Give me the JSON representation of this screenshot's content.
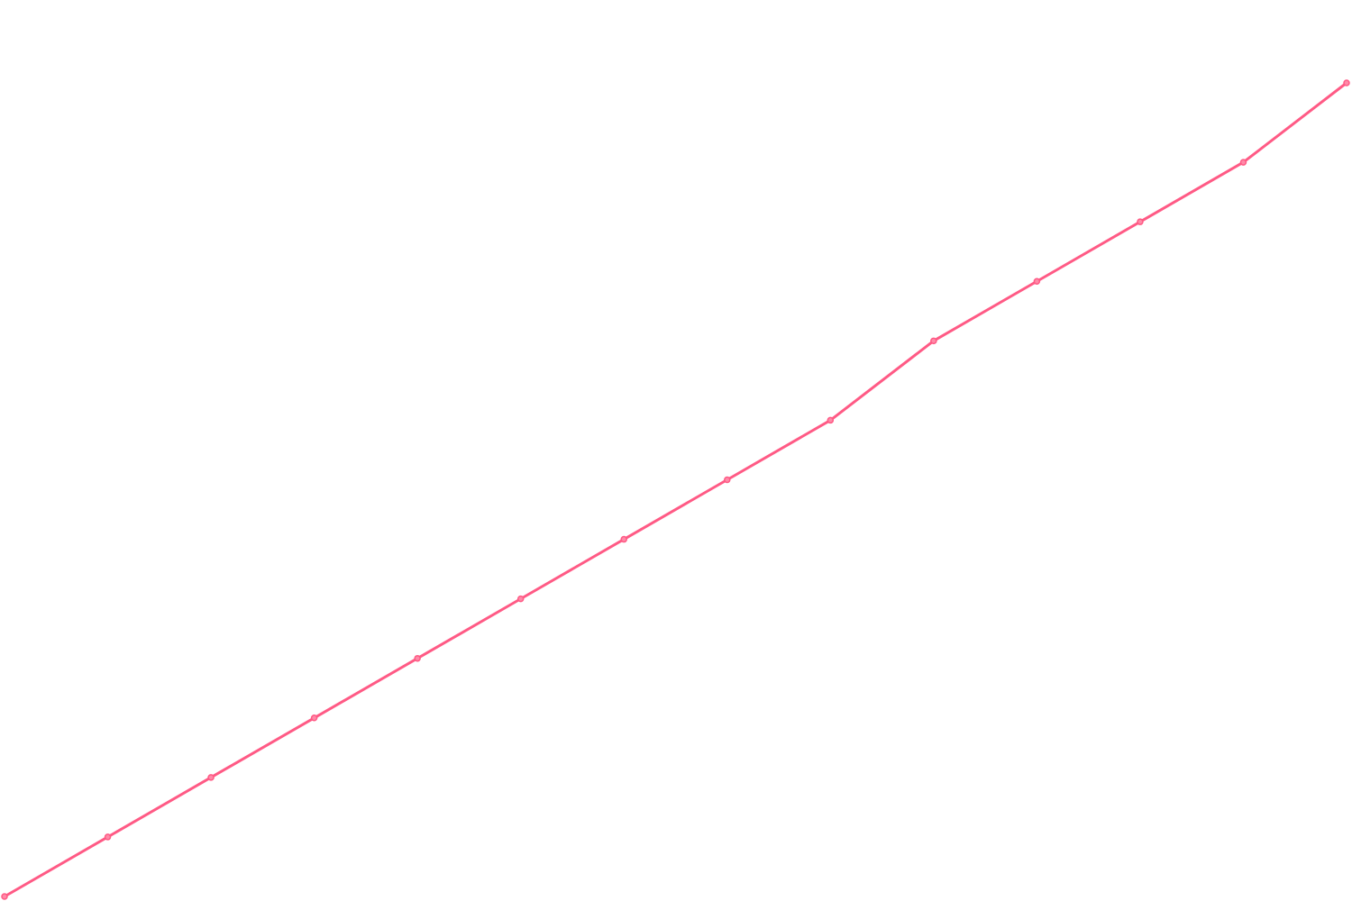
{
  "chart_data": {
    "type": "line",
    "title": "",
    "xlabel": "",
    "ylabel": "",
    "axes_visible": false,
    "grid": false,
    "legend": "none",
    "x": [
      0,
      1,
      2,
      3,
      4,
      5,
      6,
      7,
      8,
      9,
      10,
      11,
      12,
      13
    ],
    "series": [
      {
        "values": [
          0,
          3,
          6,
          9,
          12,
          15,
          18,
          21,
          24,
          28,
          31,
          34,
          37,
          41
        ],
        "color": "#ff5a85",
        "markers": "circle"
      }
    ],
    "xlim": [
      0,
      13
    ],
    "ylim": [
      0,
      41
    ]
  }
}
